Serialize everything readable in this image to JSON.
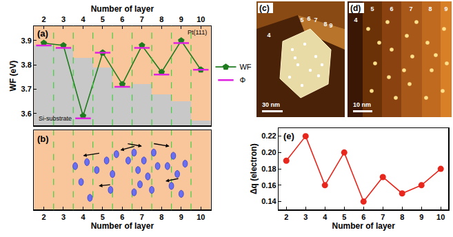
{
  "chart_data": [
    {
      "type": "line",
      "x": [
        2,
        3,
        4,
        5,
        6,
        7,
        8,
        9,
        10
      ],
      "x_label": "Number of layer",
      "y_label": "WF (eV)",
      "xlim": [
        1.5,
        10.5
      ],
      "xticks": [
        2,
        3,
        4,
        5,
        6,
        7,
        8,
        9,
        10
      ],
      "ylim": [
        3.55,
        3.96
      ],
      "yticks": [
        3.6,
        3.7,
        3.8,
        3.9
      ],
      "legend": "right",
      "series": [
        {
          "type": "bar",
          "color": "#c8c8c8",
          "values": [
            3.88,
            3.87,
            3.83,
            3.79,
            3.71,
            3.72,
            3.68,
            3.65,
            3.57
          ]
        },
        {
          "name": "WF",
          "type": "line",
          "color": "#1e7b1e",
          "marker": "pentagon",
          "values": [
            3.89,
            3.88,
            3.59,
            3.85,
            3.72,
            3.88,
            3.77,
            3.9,
            3.78
          ]
        },
        {
          "name": "Φ",
          "type": "scatter",
          "color": "#e020e0",
          "marker": "dash",
          "values": [
            3.88,
            3.87,
            3.58,
            3.85,
            3.71,
            3.87,
            3.76,
            3.89,
            3.78
          ]
        }
      ],
      "annotations": [
        "(a)",
        "Si-substrate",
        "Pt(111)"
      ]
    },
    {
      "type": "diagram",
      "x_label": "Number of layer",
      "xlim": [
        1.5,
        10.5
      ],
      "xticks": [
        2,
        3,
        4,
        5,
        6,
        7,
        8,
        9,
        10
      ],
      "tick_labels": "x",
      "annotations": [
        "(b)"
      ]
    },
    {
      "type": "line",
      "x": [
        2,
        3,
        4,
        5,
        6,
        7,
        8,
        9,
        10
      ],
      "x_label": "Number of layer",
      "y_label": "Δq (electron)",
      "xlim": [
        1.6,
        10.4
      ],
      "xticks": [
        2,
        3,
        4,
        5,
        6,
        7,
        8,
        9,
        10
      ],
      "ylim": [
        0.13,
        0.23
      ],
      "yticks": [
        0.14,
        0.16,
        0.18,
        {
          "value": 0.2,
          "label": "0.20"
        },
        0.22
      ],
      "series": [
        {
          "color": "#e8261c",
          "marker": "circle",
          "values": [
            0.19,
            0.22,
            0.16,
            0.2,
            0.14,
            0.17,
            0.15,
            0.16,
            0.18
          ]
        }
      ],
      "annotations": [
        "(e)"
      ]
    }
  ],
  "images": [
    {
      "label": "(c)",
      "texts": [
        "4",
        "5",
        "6",
        "7",
        "8",
        "9"
      ],
      "scale_bar": "30 nm"
    },
    {
      "label": "(d)",
      "texts": [
        "4",
        "5",
        "6",
        "7",
        "8",
        "9"
      ],
      "scale_bar": "10 nm"
    }
  ]
}
